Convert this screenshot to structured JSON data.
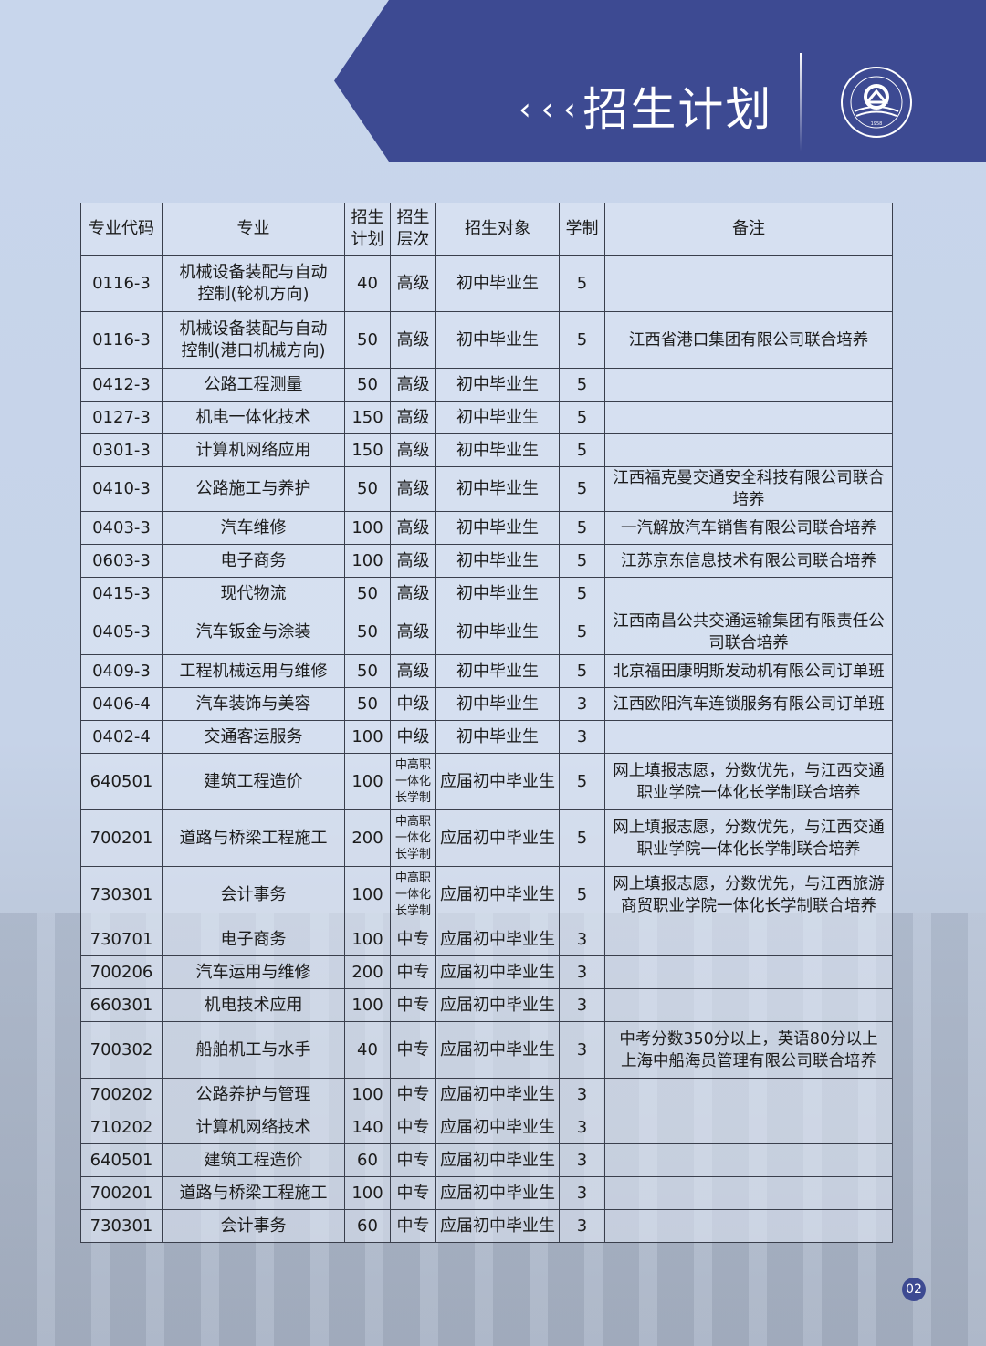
{
  "header": {
    "chevrons": "‹‹‹",
    "title": "招生计划",
    "logo_text": "江西省交通高级技工学校",
    "logo_year": "1958"
  },
  "table": {
    "columns": [
      "专业代码",
      "专业",
      "招生计划",
      "招生层次",
      "招生对象",
      "学制",
      "备注"
    ],
    "col_lines": {
      "plan": [
        "招生",
        "计划"
      ],
      "level": [
        "招生",
        "层次"
      ]
    },
    "rows": [
      {
        "code": "0116-3",
        "major": "机械设备装配与自动控制(轮机方向)",
        "plan": "40",
        "level": "高级",
        "target": "初中毕业生",
        "years": "5",
        "note": "",
        "tall": true
      },
      {
        "code": "0116-3",
        "major": "机械设备装配与自动控制(港口机械方向)",
        "plan": "50",
        "level": "高级",
        "target": "初中毕业生",
        "years": "5",
        "note": "江西省港口集团有限公司联合培养",
        "tall": true
      },
      {
        "code": "0412-3",
        "major": "公路工程测量",
        "plan": "50",
        "level": "高级",
        "target": "初中毕业生",
        "years": "5",
        "note": ""
      },
      {
        "code": "0127-3",
        "major": "机电一体化技术",
        "plan": "150",
        "level": "高级",
        "target": "初中毕业生",
        "years": "5",
        "note": ""
      },
      {
        "code": "0301-3",
        "major": "计算机网络应用",
        "plan": "150",
        "level": "高级",
        "target": "初中毕业生",
        "years": "5",
        "note": ""
      },
      {
        "code": "0410-3",
        "major": "公路施工与养护",
        "plan": "50",
        "level": "高级",
        "target": "初中毕业生",
        "years": "5",
        "note": "江西福克曼交通安全科技有限公司联合培养"
      },
      {
        "code": "0403-3",
        "major": "汽车维修",
        "plan": "100",
        "level": "高级",
        "target": "初中毕业生",
        "years": "5",
        "note": "一汽解放汽车销售有限公司联合培养"
      },
      {
        "code": "0603-3",
        "major": "电子商务",
        "plan": "100",
        "level": "高级",
        "target": "初中毕业生",
        "years": "5",
        "note": "江苏京东信息技术有限公司联合培养"
      },
      {
        "code": "0415-3",
        "major": "现代物流",
        "plan": "50",
        "level": "高级",
        "target": "初中毕业生",
        "years": "5",
        "note": ""
      },
      {
        "code": "0405-3",
        "major": "汽车钣金与涂装",
        "plan": "50",
        "level": "高级",
        "target": "初中毕业生",
        "years": "5",
        "note": "江西南昌公共交通运输集团有限责任公司联合培养"
      },
      {
        "code": "0409-3",
        "major": "工程机械运用与维修",
        "plan": "50",
        "level": "高级",
        "target": "初中毕业生",
        "years": "5",
        "note": "北京福田康明斯发动机有限公司订单班"
      },
      {
        "code": "0406-4",
        "major": "汽车装饰与美容",
        "plan": "50",
        "level": "中级",
        "target": "初中毕业生",
        "years": "3",
        "note": "江西欧阳汽车连锁服务有限公司订单班"
      },
      {
        "code": "0402-4",
        "major": "交通客运服务",
        "plan": "100",
        "level": "中级",
        "target": "初中毕业生",
        "years": "3",
        "note": ""
      },
      {
        "code": "640501",
        "major": "建筑工程造价",
        "plan": "100",
        "level": "中高职一体化长学制",
        "target": "应届初中毕业生",
        "years": "5",
        "note": "网上填报志愿，分数优先，与江西交通职业学院一体化长学制联合培养",
        "tall": true,
        "small": true
      },
      {
        "code": "700201",
        "major": "道路与桥梁工程施工",
        "plan": "200",
        "level": "中高职一体化长学制",
        "target": "应届初中毕业生",
        "years": "5",
        "note": "网上填报志愿，分数优先，与江西交通职业学院一体化长学制联合培养",
        "tall": true,
        "small": true
      },
      {
        "code": "730301",
        "major": "会计事务",
        "plan": "100",
        "level": "中高职一体化长学制",
        "target": "应届初中毕业生",
        "years": "5",
        "note": "网上填报志愿，分数优先，与江西旅游商贸职业学院一体化长学制联合培养",
        "tall": true,
        "small": true
      },
      {
        "code": "730701",
        "major": "电子商务",
        "plan": "100",
        "level": "中专",
        "target": "应届初中毕业生",
        "years": "3",
        "note": ""
      },
      {
        "code": "700206",
        "major": "汽车运用与维修",
        "plan": "200",
        "level": "中专",
        "target": "应届初中毕业生",
        "years": "3",
        "note": ""
      },
      {
        "code": "660301",
        "major": "机电技术应用",
        "plan": "100",
        "level": "中专",
        "target": "应届初中毕业生",
        "years": "3",
        "note": ""
      },
      {
        "code": "700302",
        "major": "船舶机工与水手",
        "plan": "40",
        "level": "中专",
        "target": "应届初中毕业生",
        "years": "3",
        "note": "中考分数350分以上，英语80分以上上海中船海员管理有限公司联合培养",
        "tall": true
      },
      {
        "code": "700202",
        "major": "公路养护与管理",
        "plan": "100",
        "level": "中专",
        "target": "应届初中毕业生",
        "years": "3",
        "note": ""
      },
      {
        "code": "710202",
        "major": "计算机网络技术",
        "plan": "140",
        "level": "中专",
        "target": "应届初中毕业生",
        "years": "3",
        "note": ""
      },
      {
        "code": "640501",
        "major": "建筑工程造价",
        "plan": "60",
        "level": "中专",
        "target": "应届初中毕业生",
        "years": "3",
        "note": ""
      },
      {
        "code": "700201",
        "major": "道路与桥梁工程施工",
        "plan": "100",
        "level": "中专",
        "target": "应届初中毕业生",
        "years": "3",
        "note": ""
      },
      {
        "code": "730301",
        "major": "会计事务",
        "plan": "60",
        "level": "中专",
        "target": "应届初中毕业生",
        "years": "3",
        "note": ""
      }
    ]
  },
  "page_number": "02",
  "colors": {
    "banner": "#3d4a92",
    "background": "#c8d6ec",
    "border": "#3a3f4c"
  }
}
